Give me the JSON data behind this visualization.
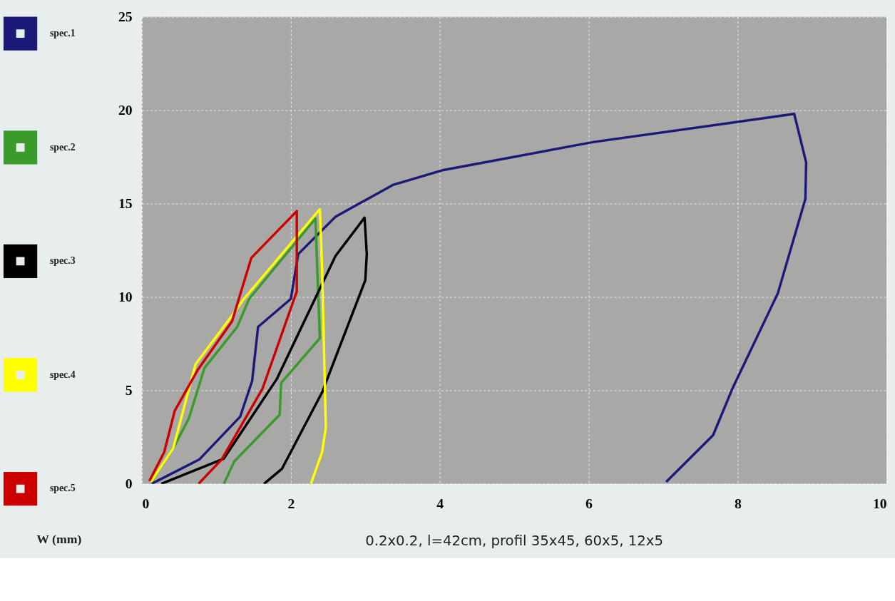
{
  "chart_data": {
    "type": "line",
    "annotations": [
      "W (mm)",
      "0.2x0.2, l=42cm, profil 35x45, 60x5, 12x5"
    ],
    "xlim": [
      0,
      10
    ],
    "ylim": [
      0,
      25
    ],
    "xticks": [
      0,
      2,
      4,
      6,
      8,
      10
    ],
    "yticks": [
      0,
      5,
      10,
      15,
      20,
      25
    ],
    "grid": true,
    "legend": "left",
    "marker": "none",
    "line_style": "solid",
    "series": [
      {
        "name": "spec.1",
        "color": "#1c1a78",
        "x": [
          0.13,
          0.77,
          1.32,
          1.48,
          1.56,
          2.0,
          2.1,
          2.6,
          3.37,
          4.05,
          6.07,
          8.76,
          8.92,
          8.91,
          8.54,
          7.93,
          7.67,
          7.04
        ],
        "values": [
          0,
          1.3,
          3.6,
          5.5,
          8.4,
          9.9,
          12.3,
          14.3,
          16.0,
          16.8,
          18.3,
          19.8,
          17.2,
          15.25,
          10.2,
          5.1,
          2.6,
          0.1
        ]
      },
      {
        "name": "spec.2",
        "color": "#3a9a2a",
        "x": [
          0.13,
          0.42,
          0.63,
          0.84,
          1.28,
          1.44,
          2.33,
          2.39,
          1.87,
          1.85,
          1.24,
          1.1
        ],
        "values": [
          0.15,
          1.9,
          3.5,
          6.2,
          8.4,
          9.9,
          14.2,
          7.8,
          5.4,
          3.7,
          1.2,
          0
        ]
      },
      {
        "name": "spec.3",
        "color": "#000000",
        "x": [
          0.26,
          1.1,
          1.81,
          2.3,
          2.6,
          2.99,
          3.02,
          3.0,
          2.42,
          1.88,
          1.64
        ],
        "values": [
          0,
          1.35,
          5.6,
          9.7,
          12.2,
          14.25,
          12.3,
          10.9,
          4.9,
          0.8,
          0
        ]
      },
      {
        "name": "spec.4",
        "color": "#ffff00",
        "x": [
          0.12,
          0.42,
          0.72,
          1.19,
          1.37,
          2.39,
          2.42,
          2.47,
          2.42,
          2.27
        ],
        "values": [
          0.1,
          1.9,
          6.4,
          8.9,
          9.9,
          14.7,
          11.5,
          3.0,
          1.7,
          0
        ]
      },
      {
        "name": "spec.5",
        "color": "#cc0000",
        "x": [
          0.1,
          0.3,
          0.44,
          0.75,
          1.21,
          1.47,
          2.08,
          2.08,
          1.62,
          1.07,
          0.76
        ],
        "values": [
          0.15,
          1.7,
          3.9,
          6.1,
          8.7,
          12.1,
          14.6,
          10.3,
          5.1,
          1.3,
          0
        ]
      }
    ]
  }
}
